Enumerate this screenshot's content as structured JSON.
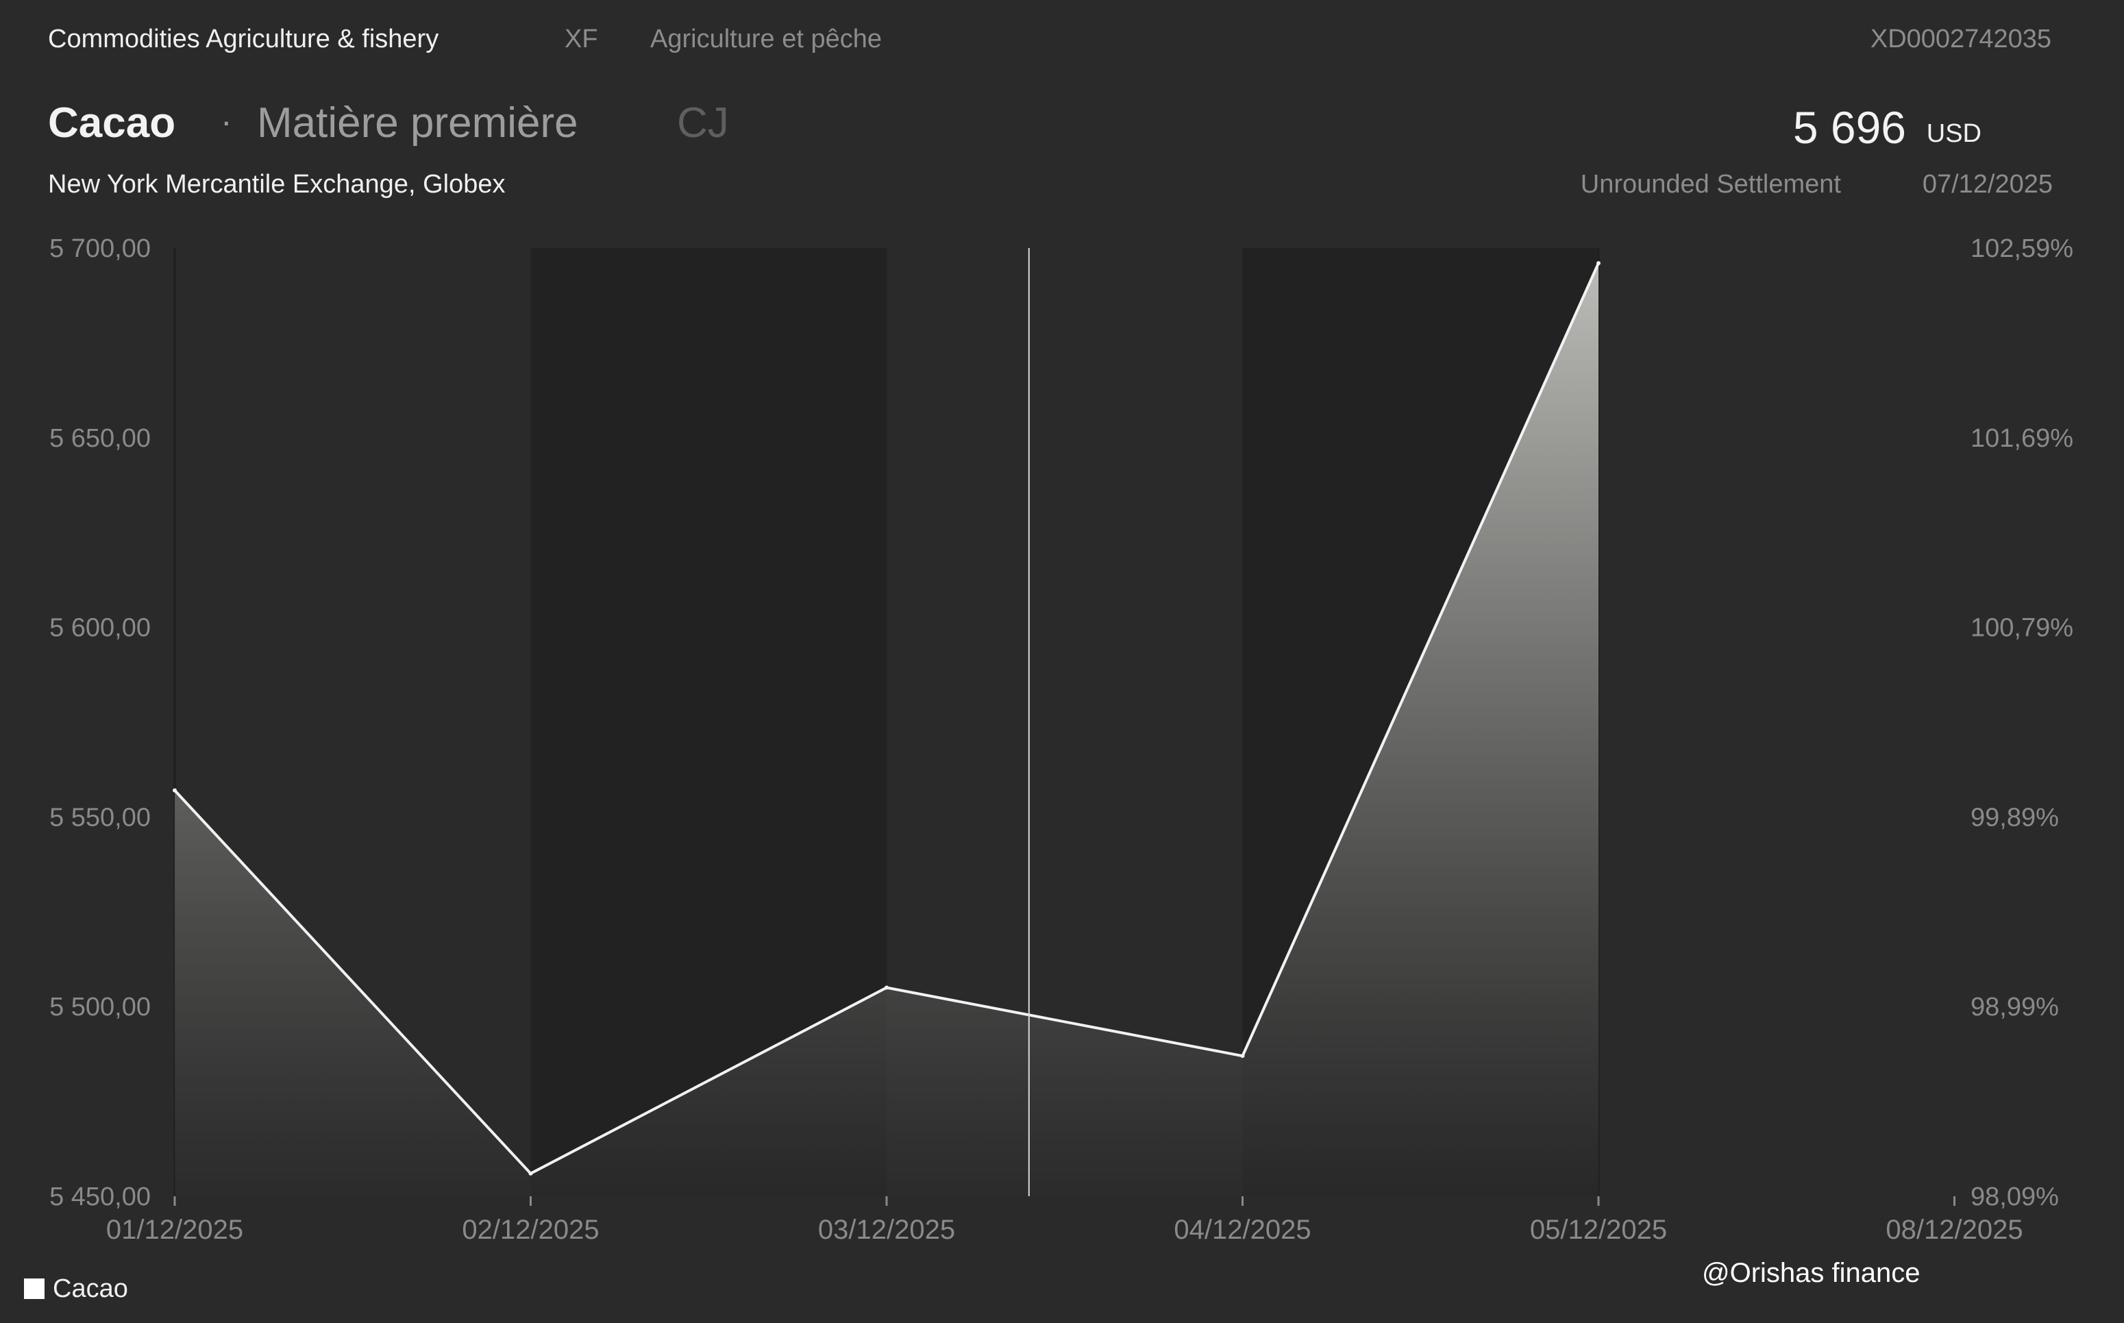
{
  "header": {
    "breadcrumb": "Commodities Agriculture & fishery",
    "market_code": "XF",
    "category_fr": "Agriculture et pêche",
    "isin": "XD0002742035",
    "title": "Cacao",
    "separator": "·",
    "subtitle": "Matière première",
    "ticker": "CJ",
    "exchange": "New York Mercantile Exchange, Globex",
    "price": "5 696",
    "currency": "USD",
    "settlement_label": "Unrounded Settlement",
    "settlement_date": "07/12/2025"
  },
  "legend": {
    "label": "Cacao"
  },
  "watermark": "@Orishas finance",
  "colors": {
    "background": "#2a2a2a",
    "band_dark": "#222222",
    "line": "#f2f2f2"
  },
  "chart_data": {
    "type": "area",
    "x": [
      "01/12/2025",
      "02/12/2025",
      "03/12/2025",
      "04/12/2025",
      "05/12/2025"
    ],
    "x_ticks": [
      "01/12/2025",
      "02/12/2025",
      "03/12/2025",
      "04/12/2025",
      "05/12/2025",
      "08/12/2025"
    ],
    "series": [
      {
        "name": "Cacao",
        "values": [
          5557,
          5456,
          5505,
          5487,
          5696
        ]
      }
    ],
    "ylim": [
      5450,
      5700
    ],
    "y_ticks": [
      "5 450,00",
      "5 500,00",
      "5 550,00",
      "5 600,00",
      "5 650,00",
      "5 700,00"
    ],
    "y2_ticks": [
      "98,09%",
      "98,99%",
      "99,89%",
      "100,79%",
      "101,69%",
      "102,59%"
    ],
    "crosshair_x_index": 2.4,
    "grid": false,
    "legend_position": "bottom-left"
  }
}
